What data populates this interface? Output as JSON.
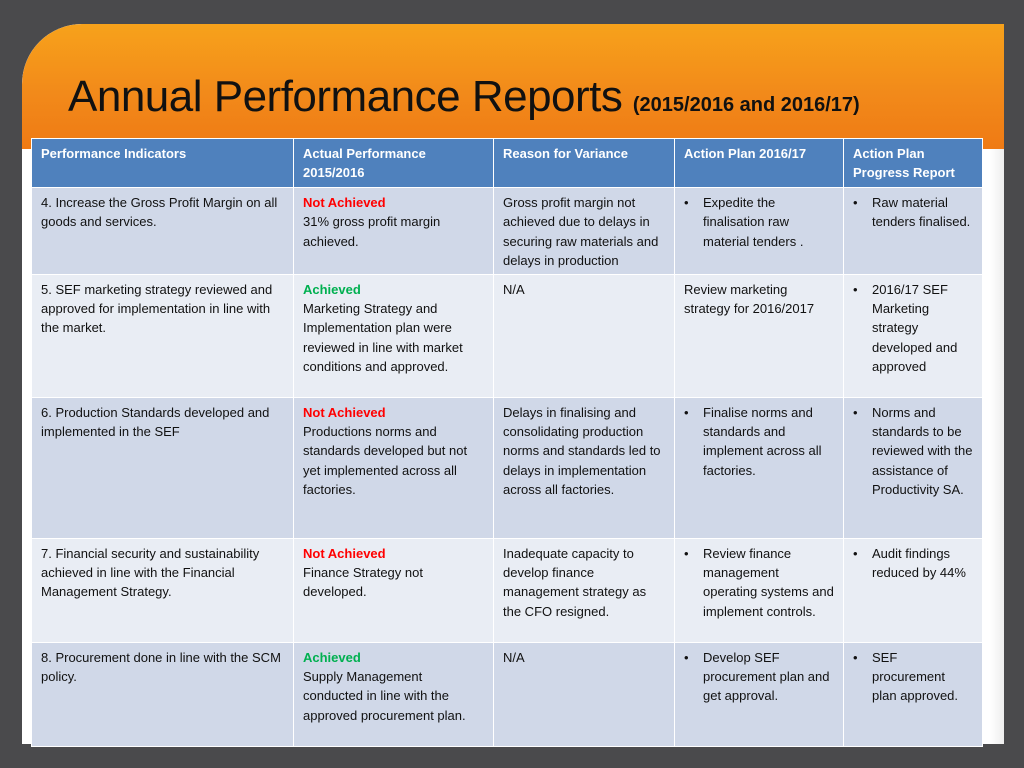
{
  "title": {
    "main": "Annual Performance Reports",
    "sub": "(2015/2016  and 2016/17)"
  },
  "colors": {
    "header_bg": "#4f81bd",
    "row_odd": "#d0d8e8",
    "row_even": "#e9edf4",
    "achieved": "#00b050",
    "not_achieved": "#ff0000",
    "band": "#f28a1a"
  },
  "table": {
    "headers": [
      "Performance Indicators",
      "Actual Performance 2015/2016",
      "Reason for Variance",
      "Action Plan 2016/17",
      "Action Plan Progress Report"
    ],
    "rows": [
      {
        "indicator": "4. Increase the Gross Profit Margin on all goods and services.",
        "status": "Not Achieved",
        "actual": "31% gross profit margin achieved.",
        "reason": "Gross profit margin not achieved due to delays in securing raw materials and delays in production",
        "action_plan": "Expedite the finalisation raw material tenders .",
        "progress": "Raw material tenders finalised."
      },
      {
        "indicator": "5.  SEF marketing strategy reviewed and approved for implementation in line with the market.",
        "status": "Achieved",
        "actual": "Marketing Strategy and Implementation plan were reviewed in line with market conditions and approved.",
        "reason": "N/A",
        "action_plan": "Review marketing strategy for 2016/2017",
        "progress": "2016/17 SEF Marketing strategy developed and approved"
      },
      {
        "indicator": "6. Production Standards developed and implemented in the SEF",
        "status": "Not Achieved",
        "actual": "Productions  norms and standards developed but not yet implemented across all factories.",
        "reason": "Delays in finalising  and consolidating production norms and standards led to delays in implementation across all factories.",
        "action_plan": "Finalise norms and standards and implement across all factories.",
        "progress": "Norms and standards to be reviewed with the assistance of Productivity SA."
      },
      {
        "indicator": "7. Financial security and sustainability achieved in line with the Financial Management Strategy.",
        "status": "Not Achieved",
        "actual": "Finance Strategy not developed.",
        "reason": "Inadequate capacity to develop finance management strategy as the CFO resigned.",
        "action_plan": "Review finance management operating systems and implement controls.",
        "progress": "Audit findings reduced by 44%"
      },
      {
        "indicator": "8. Procurement done in line with the SCM policy.",
        "status": "Achieved",
        "actual": "Supply Management conducted in line with the approved procurement plan.",
        "reason": "N/A",
        "action_plan": "Develop SEF procurement plan and get approval.",
        "progress": "SEF procurement plan approved."
      }
    ]
  }
}
